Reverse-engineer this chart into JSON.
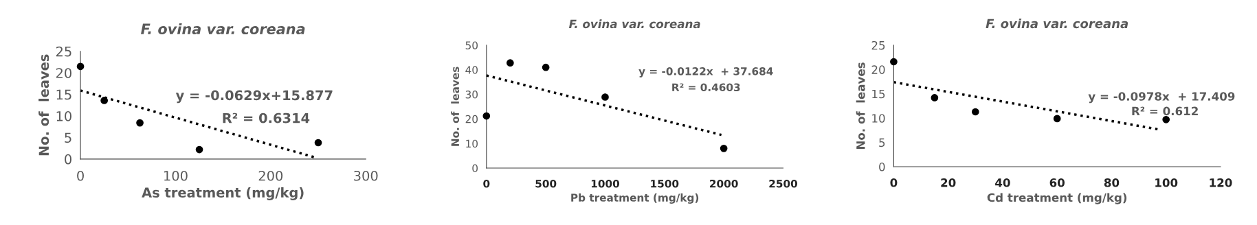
{
  "chart_data": [
    {
      "type": "scatter",
      "title": "F. ovina var. coreana",
      "xlabel": "As treatment (mg/kg)",
      "ylabel": "No. of  leaves",
      "xlim": [
        0,
        300
      ],
      "xticks": [
        0,
        100,
        200,
        300
      ],
      "ylim": [
        0,
        25
      ],
      "yticks": [
        0,
        5,
        10,
        15,
        20,
        25
      ],
      "grid": false,
      "legend": false,
      "annotations": [
        "y = -0.0629x+15.877",
        "R² = 0.6314"
      ],
      "series": [
        {
          "color": "#000000",
          "marker": "circle",
          "x": [
            0,
            25,
            62.5,
            125,
            250
          ],
          "values": [
            21.5,
            13.6,
            8.4,
            2.2,
            3.8
          ]
        },
        {
          "type": "line",
          "color": "#000000",
          "line_style": "dotted",
          "marker": "none",
          "x": [
            0,
            248
          ],
          "values": [
            15.9,
            0.3
          ]
        }
      ]
    },
    {
      "type": "scatter",
      "title": "F. ovina var. coreana",
      "xlabel": "Pb treatment (mg/kg)",
      "ylabel": "No. of  leaves",
      "xlim": [
        0,
        2500
      ],
      "xticks": [
        0,
        500,
        1000,
        1500,
        2000,
        2500
      ],
      "ylim": [
        0,
        50
      ],
      "yticks": [
        0,
        10,
        20,
        30,
        40,
        50
      ],
      "grid": false,
      "legend": false,
      "annotations": [
        "y = -0.0122x  + 37.684",
        "R² = 0.4603"
      ],
      "series": [
        {
          "color": "#000000",
          "marker": "circle",
          "x": [
            0,
            200,
            500,
            1000,
            2000
          ],
          "values": [
            21.2,
            42.8,
            41,
            28.9,
            8
          ]
        },
        {
          "type": "line",
          "color": "#000000",
          "line_style": "dotted",
          "marker": "none",
          "x": [
            0,
            1980
          ],
          "values": [
            37.7,
            13.5
          ]
        }
      ]
    },
    {
      "type": "scatter",
      "title": "F. ovina var. coreana",
      "xlabel": "Cd treatment (mg/kg)",
      "ylabel": "No. of  leaves",
      "xlim": [
        0,
        120
      ],
      "xticks": [
        0,
        20,
        40,
        60,
        80,
        100,
        120
      ],
      "ylim": [
        0,
        25
      ],
      "yticks": [
        0,
        5,
        10,
        15,
        20,
        25
      ],
      "grid": false,
      "legend": false,
      "annotations": [
        "y = -0.0978x  + 17.409",
        "R² = 0.612"
      ],
      "series": [
        {
          "color": "#000000",
          "marker": "circle",
          "x": [
            0,
            15,
            30,
            60,
            100
          ],
          "values": [
            21.6,
            14.2,
            11.3,
            9.9,
            9.7
          ]
        },
        {
          "type": "line",
          "color": "#000000",
          "line_style": "dotted",
          "marker": "none",
          "x": [
            0,
            98
          ],
          "values": [
            17.4,
            7.6
          ]
        }
      ]
    }
  ]
}
